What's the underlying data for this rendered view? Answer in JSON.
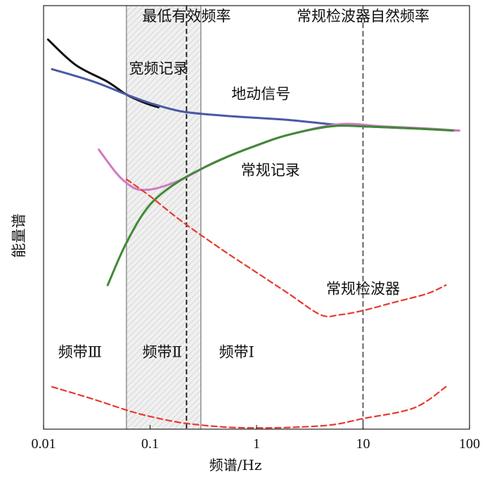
{
  "chart_data": {
    "type": "line",
    "xscale": "log",
    "xlim": [
      0.01,
      100
    ],
    "xlabel": "频谱/Hz",
    "ylabel": "能量谱",
    "x_ticks": [
      "0.01",
      "0.1",
      "1",
      "10",
      "100"
    ],
    "grid": false,
    "vlines": [
      {
        "x": 0.06,
        "style": "solid-gray"
      },
      {
        "x": 0.22,
        "style": "dashed-black",
        "label": "最低有效频率"
      },
      {
        "x": 0.3,
        "style": "solid-gray"
      },
      {
        "x": 10,
        "style": "dashed-gray",
        "label": "常规检波器自然频率"
      }
    ],
    "shaded_band": {
      "from": 0.06,
      "to": 0.3
    },
    "series": [
      {
        "name": "",
        "color": "#111111",
        "dash": false,
        "x": [
          0.011,
          0.02,
          0.04,
          0.06,
          0.09,
          0.12
        ],
        "y": [
          0.92,
          0.86,
          0.82,
          0.79,
          0.77,
          0.76
        ]
      },
      {
        "name": "地动信号",
        "color": "#4b58a8",
        "dash": false,
        "x": [
          0.012,
          0.03,
          0.06,
          0.1,
          0.2,
          0.5,
          1,
          2,
          5,
          10,
          30,
          80
        ],
        "y": [
          0.85,
          0.82,
          0.79,
          0.77,
          0.75,
          0.74,
          0.735,
          0.73,
          0.72,
          0.715,
          0.71,
          0.705
        ]
      },
      {
        "name": "常规记录",
        "color": "#d07ac2",
        "dash": false,
        "x": [
          0.033,
          0.05,
          0.07,
          0.09,
          0.12,
          0.2,
          0.4,
          1,
          2,
          6,
          15,
          40,
          80
        ],
        "y": [
          0.66,
          0.6,
          0.57,
          0.565,
          0.57,
          0.59,
          0.63,
          0.67,
          0.695,
          0.72,
          0.715,
          0.71,
          0.705
        ]
      },
      {
        "name": "",
        "color": "#3f8a35",
        "dash": false,
        "x": [
          0.04,
          0.06,
          0.1,
          0.2,
          0.5,
          1,
          2,
          5,
          10,
          30,
          70
        ],
        "y": [
          0.34,
          0.44,
          0.53,
          0.59,
          0.64,
          0.67,
          0.695,
          0.715,
          0.715,
          0.71,
          0.705
        ]
      },
      {
        "name": "常规检波器",
        "color": "#e8382e",
        "dash": true,
        "x": [
          0.06,
          0.1,
          0.2,
          0.5,
          1,
          2,
          4,
          6,
          10,
          20,
          40,
          60
        ],
        "y": [
          0.59,
          0.55,
          0.49,
          0.42,
          0.37,
          0.32,
          0.27,
          0.27,
          0.28,
          0.3,
          0.32,
          0.34
        ]
      },
      {
        "name": "",
        "color": "#e8382e",
        "dash": true,
        "x": [
          0.012,
          0.03,
          0.06,
          0.1,
          0.2,
          0.5,
          1,
          2,
          5,
          10,
          30,
          60
        ],
        "y": [
          0.1,
          0.07,
          0.045,
          0.03,
          0.015,
          0.005,
          0.003,
          0.004,
          0.01,
          0.025,
          0.05,
          0.1
        ]
      }
    ],
    "annotations": [
      {
        "text": "宽频记录",
        "x": 0.12,
        "y": 0.84
      },
      {
        "text": "地动信号",
        "x": 1.1,
        "y": 0.78
      },
      {
        "text": "常规记录",
        "x": 1.35,
        "y": 0.6
      },
      {
        "text": "常规检波器",
        "x": 10,
        "y": 0.32
      },
      {
        "text": "频带Ⅲ",
        "x": 0.022,
        "y": 0.17
      },
      {
        "text": "频带Ⅱ",
        "x": 0.13,
        "y": 0.17
      },
      {
        "text": "频带Ⅰ",
        "x": 0.65,
        "y": 0.17
      }
    ]
  }
}
